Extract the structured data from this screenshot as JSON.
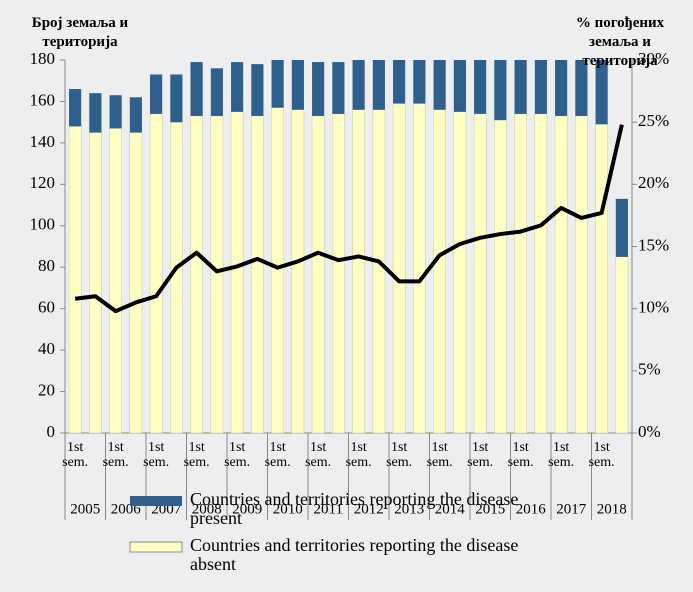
{
  "chart_data": {
    "type": "bar",
    "y_title": "Број земаља и територија",
    "y2_title": "% погођених земаља и територија",
    "categories": [
      "1st sem.",
      null,
      "1st sem.",
      null,
      "1st sem.",
      null,
      "1st sem.",
      null,
      "1st sem.",
      null,
      "1st sem.",
      null,
      "1st sem.",
      null,
      "1st sem.",
      null,
      "1st sem.",
      null,
      "1st sem.",
      null,
      "1st sem.",
      null,
      "1st sem.",
      null,
      "1st sem.",
      null,
      "1st sem.",
      null
    ],
    "years": [
      "2005",
      "2006",
      "2007",
      "2008",
      "2009",
      "2010",
      "2011",
      "2012",
      "2013",
      "2014",
      "2015",
      "2016",
      "2017",
      "2018"
    ],
    "series": [
      {
        "name": "Countries and territories reporting the disease absent",
        "color": "#ffffc4",
        "values": [
          148,
          145,
          147,
          145,
          154,
          150,
          153,
          153,
          155,
          153,
          157,
          156,
          153,
          154,
          156,
          156,
          159,
          159,
          156,
          155,
          154,
          151,
          154,
          154,
          153,
          153,
          149,
          85
        ]
      },
      {
        "name": "Countries and territories reporting the disease present",
        "color": "#2f5f8c",
        "values": [
          18,
          19,
          16,
          17,
          19,
          23,
          26,
          23,
          24,
          25,
          23,
          24,
          26,
          25,
          24,
          24,
          21,
          21,
          24,
          25,
          26,
          29,
          26,
          26,
          27,
          27,
          31,
          28
        ]
      },
      {
        "name": "% погођених земаља и територија",
        "color": "#000000",
        "axis": "y2",
        "values": [
          10.8,
          11.0,
          9.8,
          10.5,
          11.0,
          13.3,
          14.5,
          13.0,
          13.4,
          14.0,
          13.3,
          13.8,
          14.5,
          13.9,
          14.2,
          13.8,
          12.2,
          12.2,
          14.3,
          15.2,
          15.7,
          16.0,
          16.2,
          16.7,
          18.1,
          17.3,
          17.7,
          24.8
        ]
      }
    ],
    "ylim": [
      0,
      180
    ],
    "yticks": [
      0,
      20,
      40,
      60,
      80,
      100,
      120,
      140,
      160,
      180
    ],
    "y2lim": [
      0,
      30
    ],
    "y2ticks": [
      {
        "value": 0,
        "label": "0%"
      },
      {
        "value": 5,
        "label": "5%"
      },
      {
        "value": 10,
        "label": "10%"
      },
      {
        "value": 15,
        "label": "15%"
      },
      {
        "value": 20,
        "label": "20%"
      },
      {
        "value": 25,
        "label": "25%"
      },
      {
        "value": 30,
        "label": "30%"
      }
    ],
    "stacked": true
  }
}
